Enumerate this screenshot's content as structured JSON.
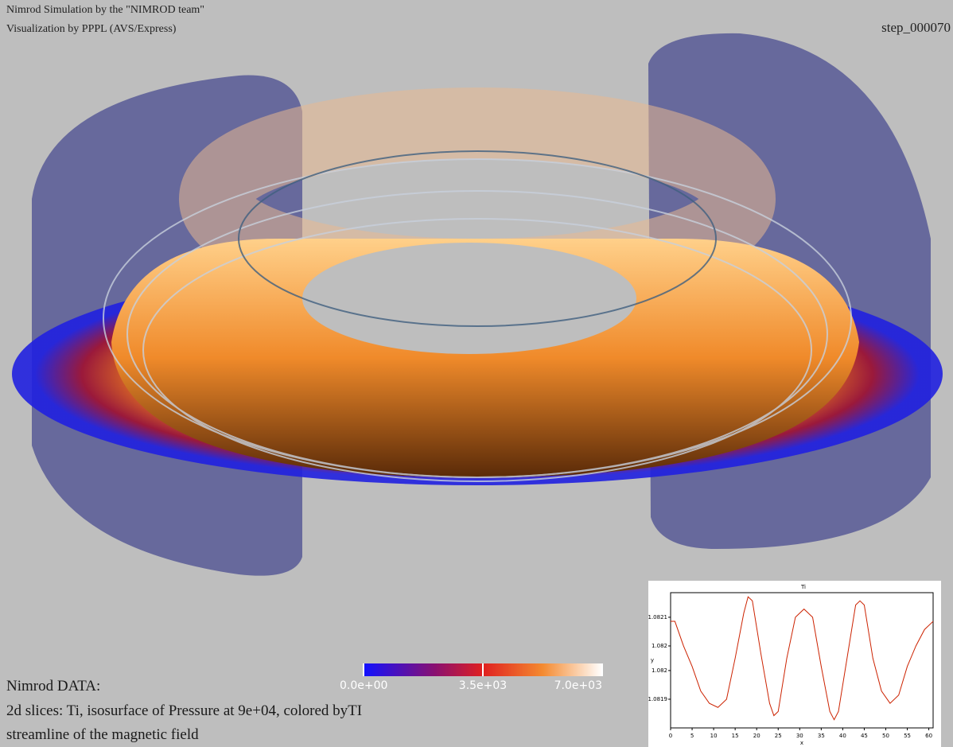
{
  "header": {
    "line1": "Nimrod Simulation by the \"NIMROD team\"",
    "line2": "Visualization by PPPL (AVS/Express)",
    "step": "step_000070"
  },
  "notes": {
    "line1": "Nimrod DATA:",
    "line2": "2d slices: Ti, isosurface of Pressure at 9e+04, colored byTI",
    "line3": "streamline of the magnetic field"
  },
  "colorbar": {
    "range": [
      0,
      7000
    ],
    "ticks": [
      {
        "value": 0,
        "label": "0.0e+00"
      },
      {
        "value": 3500,
        "label": "3.5e+03"
      },
      {
        "value": 7000,
        "label": "7.0e+03"
      }
    ]
  },
  "chart_data": {
    "type": "line",
    "title": "Ti",
    "x_label": "x",
    "y_label": "y",
    "color": "#cc2200",
    "x": [
      0,
      1,
      3,
      5,
      7,
      9,
      11,
      13,
      15,
      17,
      18,
      19,
      21,
      23,
      24,
      25,
      27,
      29,
      31,
      33,
      35,
      37,
      38,
      39,
      41,
      43,
      44,
      45,
      47,
      49,
      51,
      53,
      55,
      57,
      59,
      61
    ],
    "values": [
      1.08209,
      1.08209,
      1.08203,
      1.08198,
      1.08192,
      1.08189,
      1.08188,
      1.0819,
      1.082,
      1.08211,
      1.08215,
      1.08214,
      1.08201,
      1.08189,
      1.08186,
      1.08187,
      1.082,
      1.0821,
      1.08212,
      1.0821,
      1.08198,
      1.08187,
      1.08185,
      1.08187,
      1.082,
      1.08213,
      1.08214,
      1.08213,
      1.082,
      1.08192,
      1.08189,
      1.08191,
      1.08198,
      1.08203,
      1.08207,
      1.08209
    ],
    "xlim": [
      0,
      61
    ],
    "xticks": [
      0,
      5,
      10,
      15,
      20,
      25,
      30,
      35,
      40,
      45,
      50,
      55,
      60
    ],
    "ylim": [
      1.08183,
      1.08216
    ],
    "yticks": [
      {
        "value": 1.0821,
        "label": "1.0821"
      },
      {
        "value": 1.08203,
        "label": "1.082"
      },
      {
        "value": 1.08197,
        "label": "1.082"
      },
      {
        "value": 1.0819,
        "label": "1.0819"
      }
    ]
  }
}
